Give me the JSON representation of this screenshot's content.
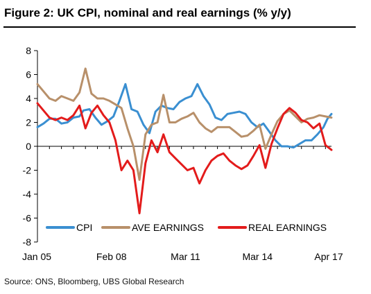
{
  "figure": {
    "title": "Figure 2: UK CPI, nominal and real earnings (% y/y)",
    "source": "Source: ONS, Bloomberg, UBS Global Research"
  },
  "chart_data": {
    "type": "line",
    "title": "Figure 2: UK CPI, nominal and real earnings (% y/y)",
    "xlabel": "",
    "ylabel": "",
    "x_range": [
      "2005-01",
      "2017-04"
    ],
    "x_tick_labels": [
      "Jan 05",
      "Feb 08",
      "Mar 11",
      "Mar 14",
      "Apr 17"
    ],
    "x_tick_dates": [
      "2005-01",
      "2008-02",
      "2011-03",
      "2014-03",
      "2017-04"
    ],
    "ylim": [
      -8,
      8
    ],
    "y_ticks": [
      -8,
      -6,
      -4,
      -2,
      0,
      2,
      4,
      6,
      8
    ],
    "grid": false,
    "legend_position": "bottom",
    "series": [
      {
        "name": "CPI",
        "color": "#3a8fd1",
        "points": [
          [
            "2005-01",
            1.6
          ],
          [
            "2005-04",
            1.9
          ],
          [
            "2005-07",
            2.3
          ],
          [
            "2005-10",
            2.3
          ],
          [
            "2006-01",
            1.9
          ],
          [
            "2006-04",
            2.0
          ],
          [
            "2006-07",
            2.4
          ],
          [
            "2006-10",
            2.5
          ],
          [
            "2006-12",
            3.0
          ],
          [
            "2007-03",
            3.1
          ],
          [
            "2007-06",
            2.4
          ],
          [
            "2007-09",
            1.8
          ],
          [
            "2007-12",
            2.1
          ],
          [
            "2008-03",
            2.5
          ],
          [
            "2008-06",
            3.8
          ],
          [
            "2008-09",
            5.2
          ],
          [
            "2008-12",
            3.1
          ],
          [
            "2009-03",
            2.9
          ],
          [
            "2009-06",
            1.8
          ],
          [
            "2009-09",
            1.1
          ],
          [
            "2009-12",
            2.9
          ],
          [
            "2010-03",
            3.4
          ],
          [
            "2010-06",
            3.2
          ],
          [
            "2010-09",
            3.1
          ],
          [
            "2010-12",
            3.7
          ],
          [
            "2011-03",
            4.0
          ],
          [
            "2011-06",
            4.2
          ],
          [
            "2011-09",
            5.2
          ],
          [
            "2011-12",
            4.2
          ],
          [
            "2012-03",
            3.5
          ],
          [
            "2012-06",
            2.4
          ],
          [
            "2012-09",
            2.2
          ],
          [
            "2012-12",
            2.7
          ],
          [
            "2013-03",
            2.8
          ],
          [
            "2013-06",
            2.9
          ],
          [
            "2013-09",
            2.7
          ],
          [
            "2013-12",
            2.0
          ],
          [
            "2014-03",
            1.6
          ],
          [
            "2014-06",
            1.9
          ],
          [
            "2014-09",
            1.2
          ],
          [
            "2014-12",
            0.5
          ],
          [
            "2015-03",
            0.0
          ],
          [
            "2015-06",
            0.0
          ],
          [
            "2015-09",
            -0.1
          ],
          [
            "2015-12",
            0.2
          ],
          [
            "2016-03",
            0.5
          ],
          [
            "2016-06",
            0.5
          ],
          [
            "2016-09",
            1.0
          ],
          [
            "2016-12",
            1.6
          ],
          [
            "2017-02",
            2.3
          ],
          [
            "2017-04",
            2.7
          ]
        ]
      },
      {
        "name": "AVE EARNINGS",
        "color": "#b8906a",
        "points": [
          [
            "2005-01",
            5.2
          ],
          [
            "2005-04",
            4.6
          ],
          [
            "2005-07",
            4.0
          ],
          [
            "2005-10",
            3.8
          ],
          [
            "2006-01",
            4.2
          ],
          [
            "2006-04",
            4.0
          ],
          [
            "2006-07",
            3.8
          ],
          [
            "2006-10",
            4.5
          ],
          [
            "2007-01",
            6.5
          ],
          [
            "2007-04",
            4.4
          ],
          [
            "2007-07",
            4.0
          ],
          [
            "2007-10",
            4.0
          ],
          [
            "2008-01",
            3.8
          ],
          [
            "2008-04",
            3.5
          ],
          [
            "2008-07",
            3.2
          ],
          [
            "2008-10",
            1.5
          ],
          [
            "2009-01",
            0.0
          ],
          [
            "2009-04",
            -2.8
          ],
          [
            "2009-07",
            1.0
          ],
          [
            "2009-10",
            1.8
          ],
          [
            "2010-01",
            2.0
          ],
          [
            "2010-04",
            4.3
          ],
          [
            "2010-07",
            2.0
          ],
          [
            "2010-10",
            2.0
          ],
          [
            "2011-01",
            2.3
          ],
          [
            "2011-04",
            2.5
          ],
          [
            "2011-07",
            2.8
          ],
          [
            "2011-10",
            2.0
          ],
          [
            "2012-01",
            1.5
          ],
          [
            "2012-04",
            1.2
          ],
          [
            "2012-07",
            1.6
          ],
          [
            "2012-10",
            1.6
          ],
          [
            "2013-01",
            1.6
          ],
          [
            "2013-04",
            1.2
          ],
          [
            "2013-07",
            0.8
          ],
          [
            "2013-10",
            0.9
          ],
          [
            "2014-01",
            1.3
          ],
          [
            "2014-04",
            1.8
          ],
          [
            "2014-07",
            -0.2
          ],
          [
            "2014-10",
            1.0
          ],
          [
            "2015-01",
            2.1
          ],
          [
            "2015-04",
            2.7
          ],
          [
            "2015-07",
            3.0
          ],
          [
            "2015-10",
            2.5
          ],
          [
            "2016-01",
            2.0
          ],
          [
            "2016-04",
            2.3
          ],
          [
            "2016-07",
            2.4
          ],
          [
            "2016-10",
            2.6
          ],
          [
            "2017-01",
            2.5
          ],
          [
            "2017-04",
            2.4
          ]
        ]
      },
      {
        "name": "REAL EARNINGS",
        "color": "#e31b1b",
        "points": [
          [
            "2005-01",
            3.6
          ],
          [
            "2005-04",
            3.0
          ],
          [
            "2005-07",
            2.4
          ],
          [
            "2005-10",
            2.2
          ],
          [
            "2006-01",
            2.4
          ],
          [
            "2006-04",
            2.2
          ],
          [
            "2006-07",
            2.6
          ],
          [
            "2006-10",
            3.4
          ],
          [
            "2007-01",
            1.5
          ],
          [
            "2007-04",
            2.8
          ],
          [
            "2007-07",
            3.4
          ],
          [
            "2007-10",
            2.6
          ],
          [
            "2008-01",
            2.0
          ],
          [
            "2008-04",
            0.5
          ],
          [
            "2008-07",
            -2.0
          ],
          [
            "2008-10",
            -1.2
          ],
          [
            "2009-01",
            -2.0
          ],
          [
            "2009-04",
            -5.6
          ],
          [
            "2009-07",
            -1.4
          ],
          [
            "2009-10",
            0.5
          ],
          [
            "2010-01",
            -0.5
          ],
          [
            "2010-04",
            1.0
          ],
          [
            "2010-07",
            -0.5
          ],
          [
            "2010-10",
            -1.0
          ],
          [
            "2011-01",
            -1.5
          ],
          [
            "2011-04",
            -2.0
          ],
          [
            "2011-07",
            -1.8
          ],
          [
            "2011-10",
            -3.1
          ],
          [
            "2012-01",
            -2.0
          ],
          [
            "2012-04",
            -1.2
          ],
          [
            "2012-07",
            -0.8
          ],
          [
            "2012-10",
            -0.6
          ],
          [
            "2013-01",
            -1.2
          ],
          [
            "2013-04",
            -1.6
          ],
          [
            "2013-07",
            -1.9
          ],
          [
            "2013-10",
            -1.6
          ],
          [
            "2014-01",
            -0.8
          ],
          [
            "2014-04",
            0.1
          ],
          [
            "2014-07",
            -1.8
          ],
          [
            "2014-10",
            0.2
          ],
          [
            "2015-01",
            1.5
          ],
          [
            "2015-04",
            2.7
          ],
          [
            "2015-07",
            3.2
          ],
          [
            "2015-10",
            2.8
          ],
          [
            "2016-01",
            2.2
          ],
          [
            "2016-04",
            2.0
          ],
          [
            "2016-07",
            1.5
          ],
          [
            "2016-10",
            1.9
          ],
          [
            "2017-01",
            0.1
          ],
          [
            "2017-04",
            -0.3
          ]
        ]
      }
    ]
  }
}
